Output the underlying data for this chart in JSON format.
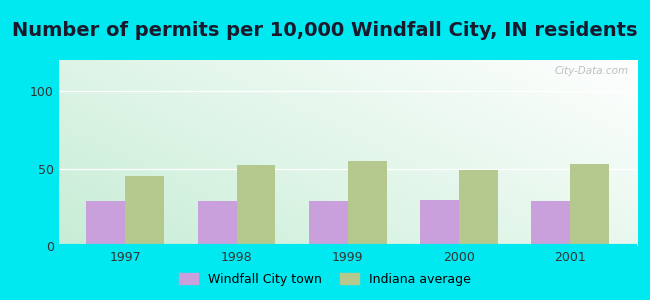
{
  "title": "Number of permits per 10,000 Windfall City, IN residents",
  "years": [
    1997,
    1998,
    1999,
    2000,
    2001
  ],
  "windfall_values": [
    29,
    29,
    29,
    30,
    29
  ],
  "indiana_values": [
    45,
    52,
    55,
    49,
    53
  ],
  "windfall_color": "#c9a0dc",
  "indiana_color": "#b5c98e",
  "background_outer": "#00e8f0",
  "ylim": [
    0,
    120
  ],
  "yticks": [
    0,
    50,
    100
  ],
  "bar_width": 0.35,
  "legend_labels": [
    "Windfall City town",
    "Indiana average"
  ],
  "title_fontsize": 14,
  "watermark": "City-Data.com"
}
